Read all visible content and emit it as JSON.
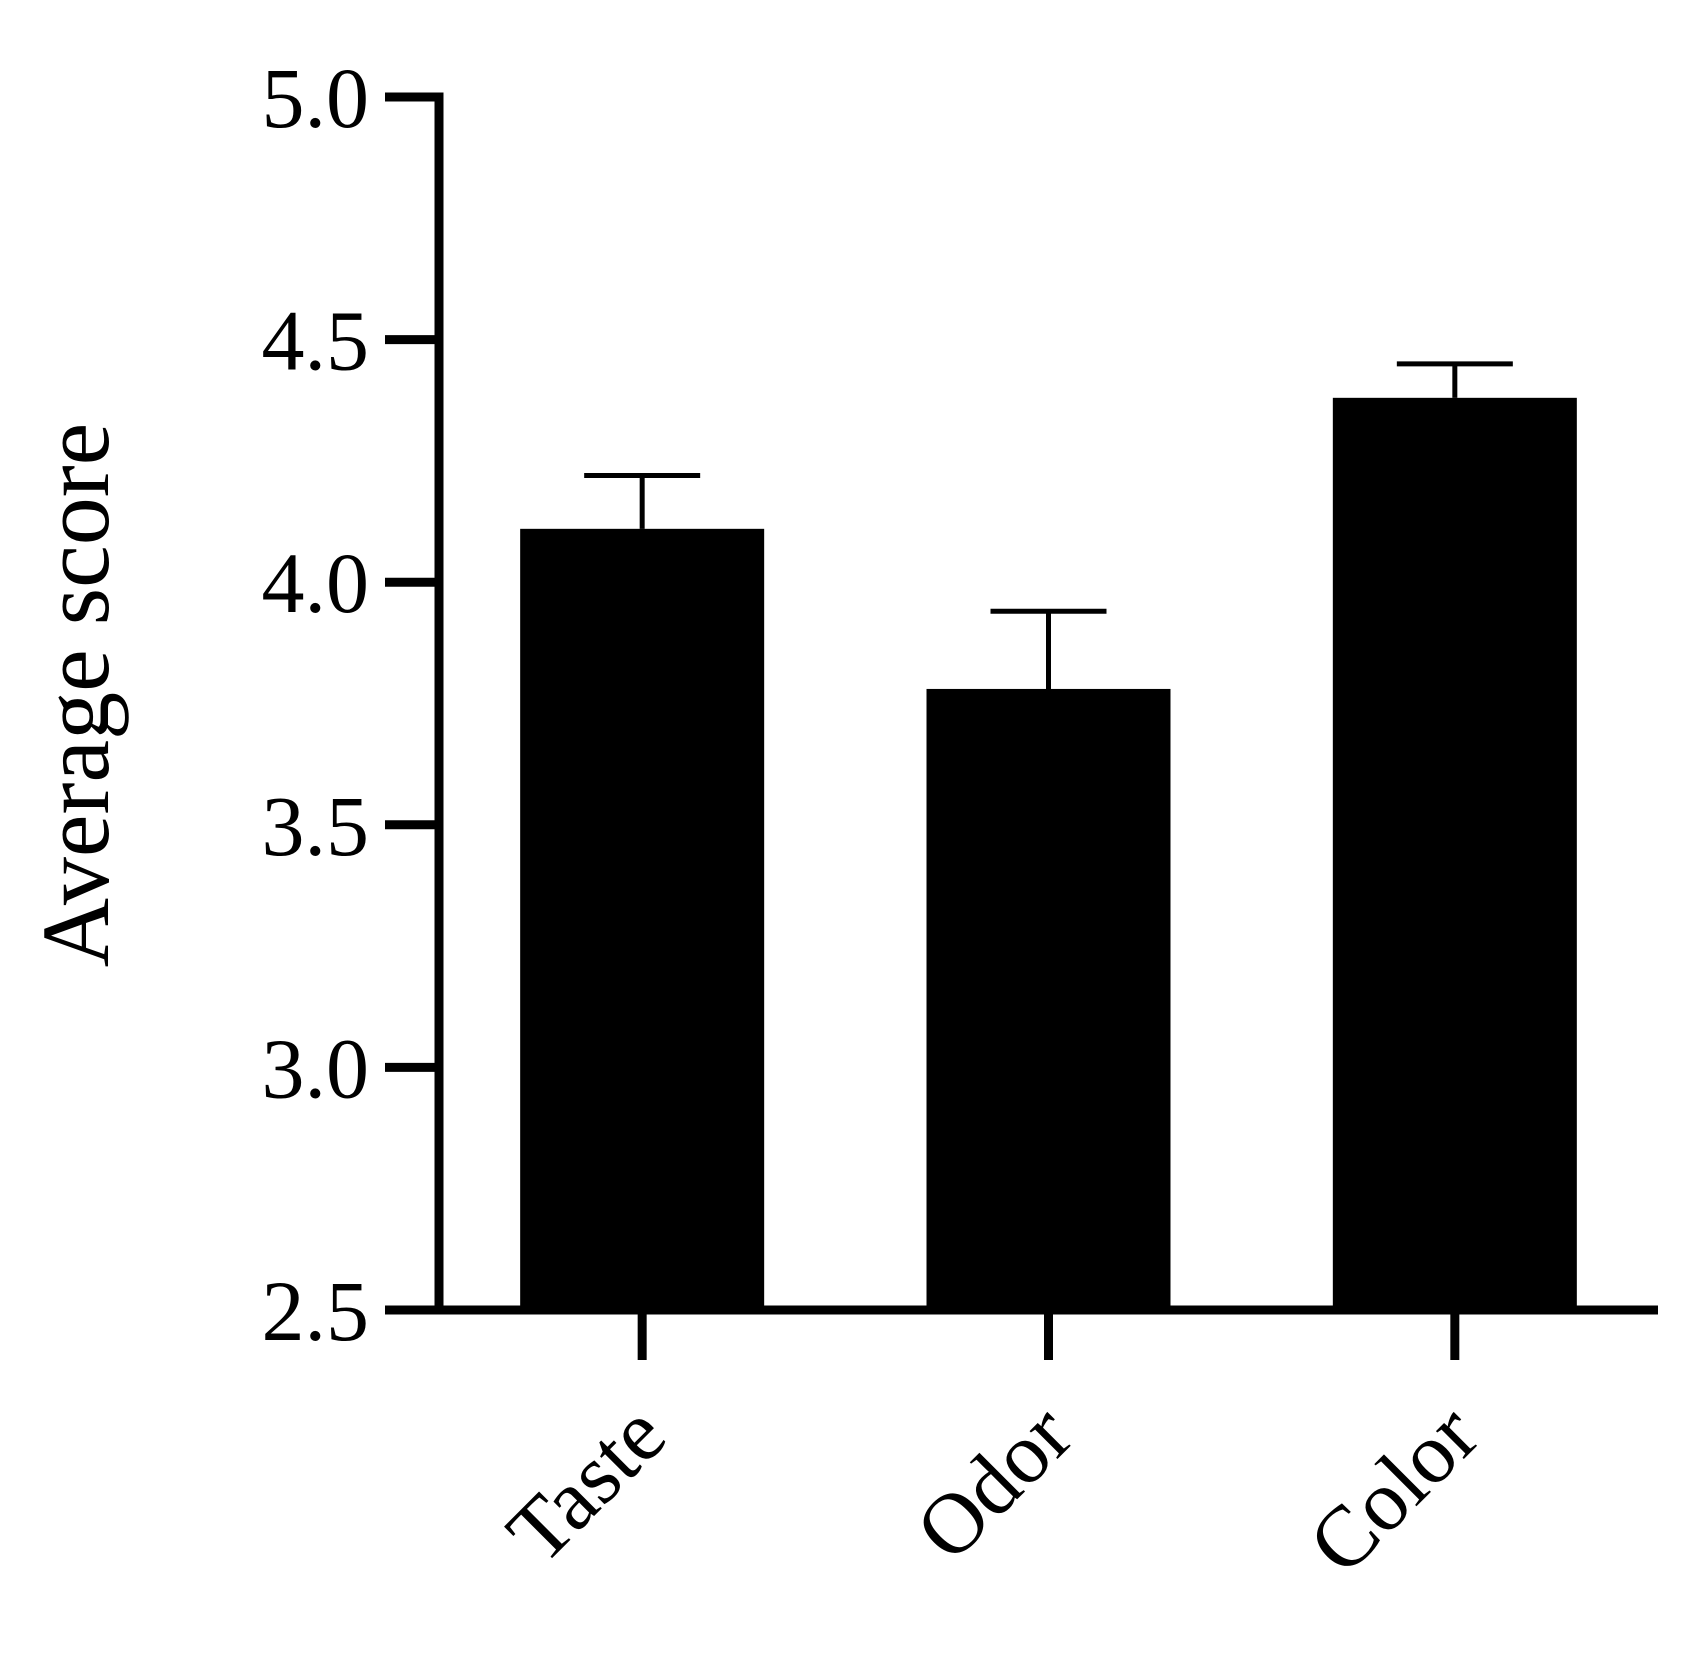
{
  "chart_data": {
    "type": "bar",
    "title": "",
    "xlabel": "",
    "ylabel": "Average score",
    "ylim": [
      2.5,
      5.0
    ],
    "yticks": [
      "2.5",
      "3.0",
      "3.5",
      "4.0",
      "4.5",
      "5.0"
    ],
    "categories": [
      "Taste",
      "Odor",
      "Color"
    ],
    "values": [
      4.11,
      3.78,
      4.38
    ],
    "errors": [
      0.11,
      0.16,
      0.07
    ],
    "grid": false,
    "legend": "none",
    "colors": {
      "bar": "#000000",
      "axis": "#000000",
      "background": "#ffffff"
    }
  }
}
